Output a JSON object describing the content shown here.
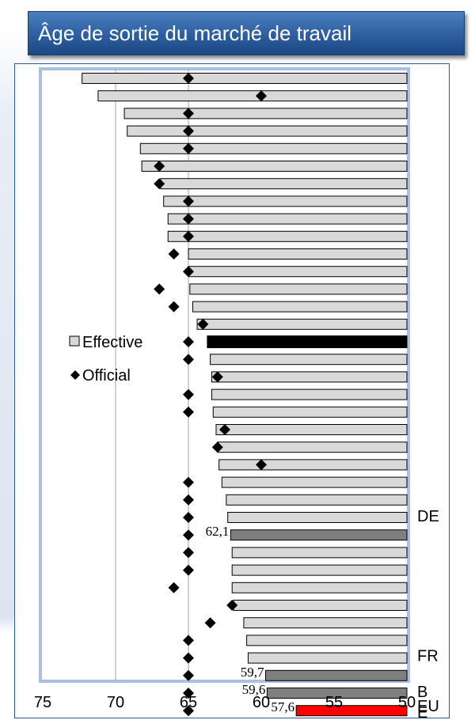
{
  "header": {
    "title": "Âge de sortie du marché de travail"
  },
  "chart_data": {
    "type": "bar",
    "orientation": "horizontal",
    "title": "",
    "xlim": [
      75,
      50
    ],
    "x_reversed": true,
    "x_ticks": [
      75,
      70,
      65,
      60,
      55,
      50
    ],
    "x_tick_labels": [
      "75",
      "70",
      "65",
      "60",
      "55",
      "50"
    ],
    "grid": "vertical lines at 70 and 65",
    "legend": {
      "position": "left-middle",
      "entries": [
        "Effective",
        "Official"
      ]
    },
    "series": [
      {
        "name": "Effective",
        "kind": "bar",
        "values": [
          72.3,
          71.2,
          69.4,
          69.2,
          68.3,
          68.2,
          66.9,
          66.7,
          66.4,
          66.4,
          65.0,
          65.0,
          64.9,
          64.7,
          64.4,
          63.7,
          63.5,
          63.4,
          63.4,
          63.3,
          63.1,
          63.0,
          62.9,
          62.7,
          62.4,
          62.3,
          62.1,
          62.0,
          62.0,
          62.0,
          61.9,
          61.2,
          61.0,
          60.9,
          59.7,
          59.6,
          57.6
        ]
      },
      {
        "name": "Official",
        "kind": "marker",
        "values": [
          65,
          60,
          65,
          65,
          65,
          67,
          67,
          65,
          65,
          65,
          66,
          65,
          67,
          66,
          64,
          65,
          65,
          63,
          65,
          65,
          62.5,
          63,
          60,
          65,
          65,
          65,
          65,
          65,
          65,
          66,
          62,
          63.5,
          65,
          65,
          65,
          65,
          65
        ]
      }
    ],
    "highlights": [
      {
        "index": 15,
        "color": "#000000"
      },
      {
        "index": 26,
        "color": "#7f7f7f"
      },
      {
        "index": 34,
        "color": "#7f7f7f"
      },
      {
        "index": 35,
        "color": "#7f7f7f"
      },
      {
        "index": 36,
        "color": "#ff0000"
      }
    ],
    "data_labels": [
      {
        "index": 26,
        "text": "62,1"
      },
      {
        "index": 34,
        "text": "59,7"
      },
      {
        "index": 35,
        "text": "59,6"
      },
      {
        "index": 36,
        "text": "57,6"
      }
    ],
    "category_labels": [
      {
        "index": 25,
        "text": "DE"
      },
      {
        "index": 33,
        "text": "FR"
      },
      {
        "index": 35,
        "text": "B"
      },
      {
        "index": 36,
        "text": "EU"
      },
      {
        "index": 36,
        "text": "E"
      }
    ],
    "colors": {
      "bar": "#d9d9d9",
      "bar_stroke": "#000000",
      "highlight_gray": "#7f7f7f",
      "eu": "#ff0000"
    }
  }
}
